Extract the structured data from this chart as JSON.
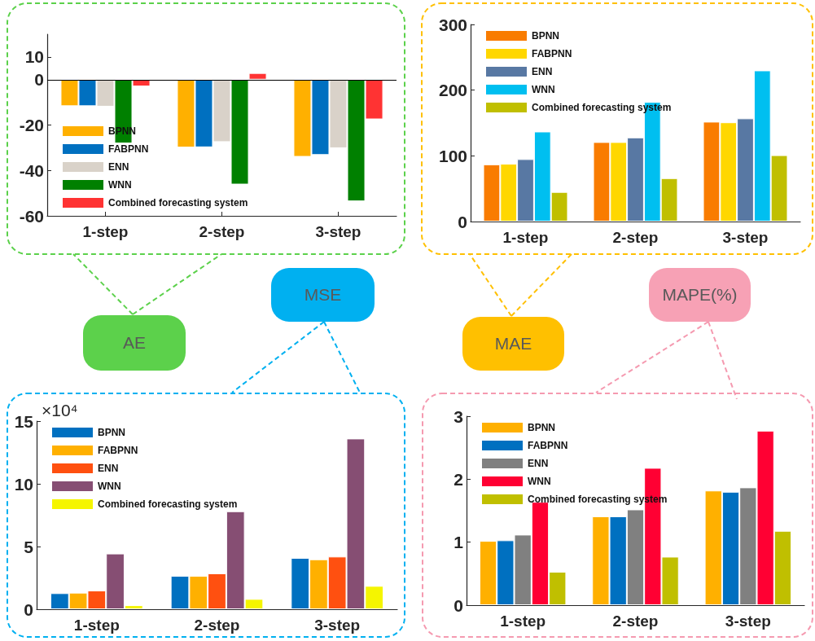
{
  "chart_data": [
    {
      "type": "bar",
      "title": "AE",
      "categories": [
        "1-step",
        "2-step",
        "3-step"
      ],
      "ylim": [
        -60,
        20
      ],
      "yticks": [
        -60,
        -40,
        -20,
        0,
        10
      ],
      "grid": false,
      "legend": "bottom left",
      "ref_lines": [
        {
          "axis": "y",
          "value": 0,
          "color": "#000000"
        }
      ],
      "series": [
        {
          "name": "BPNN",
          "color": "#ffb000",
          "values": [
            -11.7,
            -29.9,
            -34.0
          ]
        },
        {
          "name": "FABPNN",
          "color": "#0070c0",
          "values": [
            -11.7,
            -29.8,
            -33.2
          ]
        },
        {
          "name": "ENN",
          "color": "#d9d2c9",
          "values": [
            -11.9,
            -27.5,
            -30.2
          ]
        },
        {
          "name": "WNN",
          "color": "#008000",
          "values": [
            -28.1,
            -46.2,
            -53.6
          ]
        },
        {
          "name": "Combined forecasting system",
          "color": "#ff3333",
          "values": [
            -3.0,
            2.9,
            -17.5
          ]
        }
      ]
    },
    {
      "type": "bar",
      "title": "MAE",
      "categories": [
        "1-step",
        "2-step",
        "3-step"
      ],
      "ylim": [
        0,
        300
      ],
      "yticks": [
        0,
        100,
        200,
        300
      ],
      "grid": false,
      "legend": "top left",
      "series": [
        {
          "name": "BPNN",
          "color": "#f97c00",
          "values": [
            87,
            121,
            152
          ]
        },
        {
          "name": "FABPNN",
          "color": "#ffd700",
          "values": [
            88,
            121,
            151
          ]
        },
        {
          "name": "ENN",
          "color": "#5878a3",
          "values": [
            95,
            128,
            157
          ]
        },
        {
          "name": "WNN",
          "color": "#00bff0",
          "values": [
            137,
            182,
            230
          ]
        },
        {
          "name": "Combined forecasting system",
          "color": "#c0bf00",
          "values": [
            45,
            66,
            101
          ]
        }
      ]
    },
    {
      "type": "bar",
      "title": "MSE",
      "categories": [
        "1-step",
        "2-step",
        "3-step"
      ],
      "ylim": [
        0,
        15
      ],
      "yticks": [
        0,
        5,
        10,
        15
      ],
      "grid": false,
      "legend": "top left",
      "annotations": [
        "×10⁴"
      ],
      "series": [
        {
          "name": "BPNN",
          "color": "#0070c0",
          "values": [
            1.28,
            2.66,
            4.09
          ]
        },
        {
          "name": "FABPNN",
          "color": "#ffb000",
          "values": [
            1.32,
            2.66,
            3.98
          ]
        },
        {
          "name": "ENN",
          "color": "#ff5010",
          "values": [
            1.49,
            2.86,
            4.2
          ]
        },
        {
          "name": "WNN",
          "color": "#864e73",
          "values": [
            4.44,
            7.81,
            13.61
          ]
        },
        {
          "name": "Combined forecasting system",
          "color": "#f5f500",
          "values": [
            0.32,
            0.82,
            1.86
          ]
        }
      ]
    },
    {
      "type": "bar",
      "title": "MAPE(%)",
      "categories": [
        "1-step",
        "2-step",
        "3-step"
      ],
      "ylim": [
        0,
        3
      ],
      "yticks": [
        0,
        1,
        2,
        3
      ],
      "grid": false,
      "legend": "top left",
      "series": [
        {
          "name": "BPNN",
          "color": "#ffb000",
          "values": [
            1.02,
            1.41,
            1.82
          ]
        },
        {
          "name": "FABPNN",
          "color": "#0070c0",
          "values": [
            1.03,
            1.41,
            1.8
          ]
        },
        {
          "name": "ENN",
          "color": "#808080",
          "values": [
            1.12,
            1.52,
            1.87
          ]
        },
        {
          "name": "WNN",
          "color": "#ff0033",
          "values": [
            1.64,
            2.18,
            2.77
          ]
        },
        {
          "name": "Combined forecasting system",
          "color": "#c0bf00",
          "values": [
            0.53,
            0.77,
            1.18
          ]
        }
      ]
    }
  ]
}
